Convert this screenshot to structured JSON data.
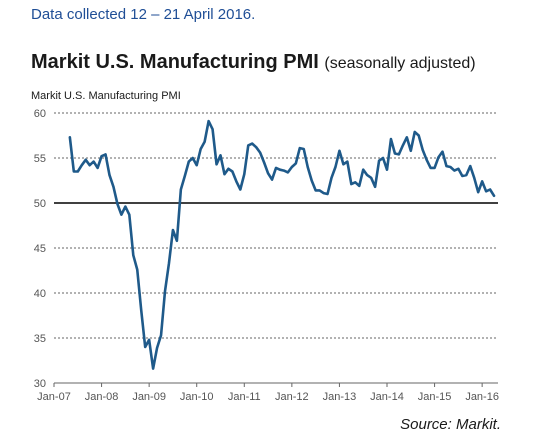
{
  "note": "Data collected 12 – 21 April 2016.",
  "title": "Markit U.S. Manufacturing PMI",
  "title_sub": "(seasonally adjusted)",
  "source": "Source: Markit.",
  "colors": {
    "line": "#1f5a8a",
    "note": "#1f4e96",
    "grid": "#333333"
  },
  "chart_data": {
    "type": "line",
    "title": "Markit U.S. Manufacturing PMI (seasonally adjusted)",
    "ylabel": "Markit U.S. Manufacturing PMI",
    "xlabel": "",
    "ylim": [
      30,
      60
    ],
    "yticks": [
      30,
      35,
      40,
      45,
      50,
      55,
      60
    ],
    "xlim": [
      "2007-01",
      "2016-05"
    ],
    "xticks": [
      "Jan-07",
      "Jan-08",
      "Jan-09",
      "Jan-10",
      "Jan-11",
      "Jan-12",
      "Jan-13",
      "Jan-14",
      "Jan-15",
      "Jan-16"
    ],
    "reference_line": 50,
    "grid": "horizontal dashed",
    "series": [
      {
        "name": "",
        "x": [
          "2007-05",
          "2007-06",
          "2007-07",
          "2007-08",
          "2007-09",
          "2007-10",
          "2007-11",
          "2007-12",
          "2008-01",
          "2008-02",
          "2008-03",
          "2008-04",
          "2008-05",
          "2008-06",
          "2008-07",
          "2008-08",
          "2008-09",
          "2008-10",
          "2008-11",
          "2008-12",
          "2009-01",
          "2009-02",
          "2009-03",
          "2009-04",
          "2009-05",
          "2009-06",
          "2009-07",
          "2009-08",
          "2009-09",
          "2009-10",
          "2009-11",
          "2009-12",
          "2010-01",
          "2010-02",
          "2010-03",
          "2010-04",
          "2010-05",
          "2010-06",
          "2010-07",
          "2010-08",
          "2010-09",
          "2010-10",
          "2010-11",
          "2010-12",
          "2011-01",
          "2011-02",
          "2011-03",
          "2011-04",
          "2011-05",
          "2011-06",
          "2011-07",
          "2011-08",
          "2011-09",
          "2011-10",
          "2011-11",
          "2011-12",
          "2012-01",
          "2012-02",
          "2012-03",
          "2012-04",
          "2012-05",
          "2012-06",
          "2012-07",
          "2012-08",
          "2012-09",
          "2012-10",
          "2012-11",
          "2012-12",
          "2013-01",
          "2013-02",
          "2013-03",
          "2013-04",
          "2013-05",
          "2013-06",
          "2013-07",
          "2013-08",
          "2013-09",
          "2013-10",
          "2013-11",
          "2013-12",
          "2014-01",
          "2014-02",
          "2014-03",
          "2014-04",
          "2014-05",
          "2014-06",
          "2014-07",
          "2014-08",
          "2014-09",
          "2014-10",
          "2014-11",
          "2014-12",
          "2015-01",
          "2015-02",
          "2015-03",
          "2015-04",
          "2015-05",
          "2015-06",
          "2015-07",
          "2015-08",
          "2015-09",
          "2015-10",
          "2015-11",
          "2015-12",
          "2016-01",
          "2016-02",
          "2016-03",
          "2016-04"
        ],
        "values": [
          57.3,
          53.5,
          53.5,
          54.2,
          54.8,
          54.2,
          54.6,
          53.9,
          55.2,
          55.4,
          53.1,
          51.8,
          49.9,
          48.7,
          49.6,
          48.7,
          44.2,
          42.6,
          38.1,
          34.0,
          34.8,
          31.6,
          33.9,
          35.3,
          40.2,
          43.3,
          47.0,
          45.8,
          51.5,
          53.0,
          54.6,
          55.0,
          54.2,
          56.0,
          56.8,
          59.1,
          58.2,
          54.3,
          55.3,
          53.2,
          53.8,
          53.5,
          52.4,
          51.5,
          53.2,
          56.4,
          56.6,
          56.2,
          55.6,
          54.5,
          53.3,
          52.6,
          53.9,
          53.7,
          53.6,
          53.4,
          54.0,
          54.4,
          56.1,
          56.0,
          54.0,
          52.5,
          51.4,
          51.4,
          51.1,
          51.0,
          52.8,
          54.0,
          55.8,
          54.3,
          54.6,
          52.1,
          52.3,
          51.9,
          53.7,
          53.1,
          52.8,
          51.8,
          54.7,
          55.0,
          53.7,
          57.1,
          55.5,
          55.4,
          56.4,
          57.3,
          55.8,
          57.9,
          57.5,
          55.9,
          54.8,
          53.9,
          53.9,
          55.1,
          55.7,
          54.1,
          54.0,
          53.6,
          53.8,
          53.0,
          53.1,
          54.1,
          52.8,
          51.2,
          52.4,
          51.3,
          51.5,
          50.8
        ]
      }
    ]
  }
}
